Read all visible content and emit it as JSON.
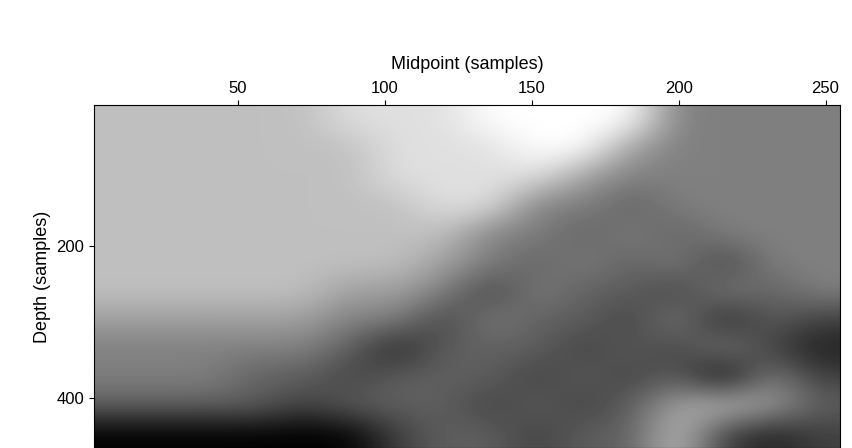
{
  "chart_data": {
    "type": "heatmap",
    "xlabel": "Midpoint (samples)",
    "ylabel": "Depth (samples)",
    "xlim": [
      1,
      255
    ],
    "xticks": [
      50,
      100,
      150,
      200,
      250
    ],
    "ylim": [
      465,
      15
    ],
    "yticks": [
      200,
      400
    ],
    "cells": [
      [
        2,
        2,
        2,
        2,
        2,
        1,
        1,
        1,
        0,
        0,
        0,
        0,
        4,
        4,
        4,
        4
      ],
      [
        2,
        2,
        2,
        2,
        2,
        2,
        1,
        1,
        1,
        0,
        0,
        3,
        4,
        4,
        4,
        4
      ],
      [
        2,
        2,
        2,
        2,
        2,
        2,
        1,
        1,
        1,
        1,
        3,
        4,
        4,
        4,
        4,
        4
      ],
      [
        2,
        2,
        2,
        2,
        2,
        2,
        2,
        1,
        1,
        4,
        4,
        5,
        4,
        4,
        4,
        4
      ],
      [
        2,
        2,
        2,
        2,
        2,
        2,
        2,
        2,
        4,
        4,
        5,
        4,
        5,
        4,
        4,
        4
      ],
      [
        2,
        2,
        2,
        2,
        2,
        2,
        2,
        3,
        4,
        5,
        4,
        5,
        4,
        6,
        4,
        4
      ],
      [
        2,
        2,
        2,
        2,
        2,
        3,
        3,
        4,
        6,
        4,
        5,
        5,
        6,
        4,
        5,
        4
      ],
      [
        3,
        3,
        3,
        3,
        3,
        4,
        4,
        6,
        4,
        5,
        5,
        6,
        4,
        7,
        5,
        6
      ],
      [
        4,
        4,
        4,
        4,
        4,
        5,
        7,
        5,
        5,
        5,
        6,
        5,
        6,
        4,
        6,
        7
      ],
      [
        4,
        4,
        4,
        5,
        5,
        6,
        5,
        5,
        5,
        6,
        5,
        6,
        5,
        8,
        4,
        6
      ],
      [
        5,
        5,
        5,
        5,
        6,
        5,
        5,
        5,
        6,
        5,
        6,
        5,
        3,
        2,
        3,
        5
      ],
      [
        8,
        8,
        8,
        8,
        8,
        8,
        6,
        5,
        5,
        6,
        5,
        5,
        2,
        6,
        7,
        6
      ]
    ]
  }
}
